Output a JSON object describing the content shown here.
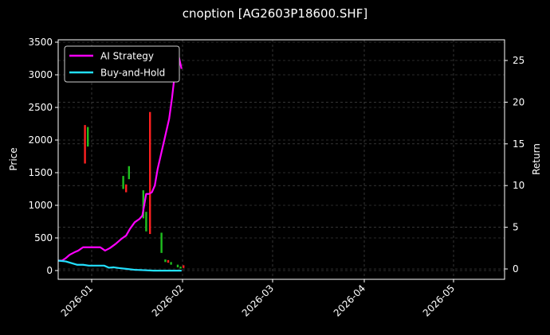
{
  "chart_data": {
    "type": "line",
    "title": "cnoption [AG2603P18600.SHF]",
    "xlabel": "",
    "ylabel": "Price",
    "y2label": "Return",
    "ylim": [
      -140,
      3540
    ],
    "y2lim": [
      -1,
      27.3
    ],
    "yticks": [
      0,
      500,
      1000,
      1500,
      2000,
      2500,
      3000,
      3500
    ],
    "y2ticks": [
      0,
      5,
      10,
      15,
      20,
      25
    ],
    "xticks": [
      "2026-01",
      "2026-02",
      "2026-03",
      "2026-04",
      "2026-05"
    ],
    "grid": true,
    "legend_position": "upper left",
    "legend": [
      "AI Strategy",
      "Buy-and-Hold"
    ],
    "series": [
      {
        "name": "AI Strategy",
        "axis": "right",
        "color": "#ff00ff",
        "points": [
          [
            0,
            1.0
          ],
          [
            4,
            1.0
          ],
          [
            8,
            1.3
          ],
          [
            12,
            1.7
          ],
          [
            17,
            2.0
          ],
          [
            21,
            2.2
          ],
          [
            26,
            2.6
          ],
          [
            34,
            2.6
          ],
          [
            44,
            2.6
          ],
          [
            49,
            2.2
          ],
          [
            54,
            2.5
          ],
          [
            60,
            3.0
          ],
          [
            66,
            3.6
          ],
          [
            71,
            4.0
          ],
          [
            75,
            4.8
          ],
          [
            80,
            5.6
          ],
          [
            85,
            6.0
          ],
          [
            88,
            6.4
          ],
          [
            92,
            9.0
          ],
          [
            95,
            9.0
          ],
          [
            98,
            9.2
          ],
          [
            101,
            10.0
          ],
          [
            104,
            12.0
          ],
          [
            108,
            14.0
          ],
          [
            112,
            16.0
          ],
          [
            116,
            18.0
          ],
          [
            119,
            20.5
          ],
          [
            122,
            23.5
          ],
          [
            125,
            26.0
          ],
          [
            129,
            24.0
          ]
        ]
      },
      {
        "name": "Buy-and-Hold",
        "axis": "right",
        "color": "#22e0ff",
        "points": [
          [
            0,
            1.0
          ],
          [
            8,
            0.9
          ],
          [
            14,
            0.7
          ],
          [
            20,
            0.5
          ],
          [
            26,
            0.5
          ],
          [
            32,
            0.4
          ],
          [
            40,
            0.4
          ],
          [
            48,
            0.4
          ],
          [
            53,
            0.15
          ],
          [
            58,
            0.2
          ],
          [
            64,
            0.1
          ],
          [
            72,
            0.0
          ],
          [
            80,
            -0.1
          ],
          [
            90,
            -0.15
          ],
          [
            100,
            -0.2
          ],
          [
            110,
            -0.2
          ],
          [
            120,
            -0.2
          ],
          [
            129,
            -0.2
          ]
        ]
      }
    ],
    "candlesticks": [
      {
        "x": 28,
        "open": 2230,
        "close": 1640,
        "color": "#ff2020"
      },
      {
        "x": 31,
        "open": 1900,
        "close": 2200,
        "color": "#1fbf1f"
      },
      {
        "x": 68,
        "open": 1250,
        "close": 1450,
        "color": "#1fbf1f"
      },
      {
        "x": 71,
        "open": 1320,
        "close": 1200,
        "color": "#ff2020"
      },
      {
        "x": 74,
        "open": 1400,
        "close": 1600,
        "color": "#1fbf1f"
      },
      {
        "x": 89,
        "open": 800,
        "close": 1230,
        "color": "#1fbf1f"
      },
      {
        "x": 92,
        "open": 600,
        "close": 900,
        "color": "#1fbf1f"
      },
      {
        "x": 96,
        "open": 560,
        "close": 2430,
        "color": "#ff2020"
      },
      {
        "x": 108,
        "open": 270,
        "close": 580,
        "color": "#1fbf1f"
      },
      {
        "x": 112,
        "open": 170,
        "close": 130,
        "color": "#1fbf1f"
      },
      {
        "x": 115,
        "open": 160,
        "close": 120,
        "color": "#ff2020"
      },
      {
        "x": 118,
        "open": 130,
        "close": 90,
        "color": "#1fbf1f"
      },
      {
        "x": 125,
        "open": 90,
        "close": 50,
        "color": "#1fbf1f"
      },
      {
        "x": 128,
        "open": 60,
        "close": 30,
        "color": "#1fbf1f"
      },
      {
        "x": 131,
        "open": 80,
        "close": 40,
        "color": "#ff2020"
      }
    ]
  }
}
